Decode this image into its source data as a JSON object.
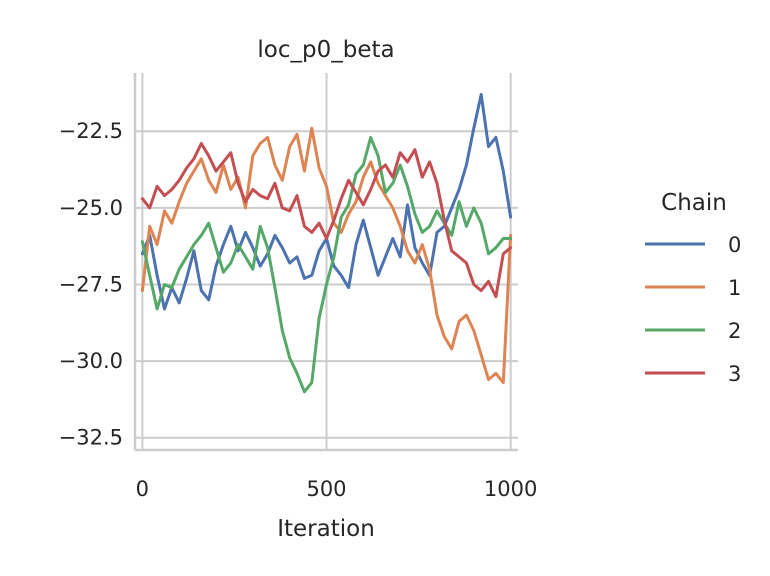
{
  "chart_data": {
    "type": "line",
    "title": "loc_p0_beta",
    "xlabel": "Iteration",
    "ylabel": "",
    "xlim": [
      -20,
      1020
    ],
    "ylim": [
      -32.9,
      -20.6
    ],
    "xticks": [
      0,
      500,
      1000
    ],
    "xtick_labels": [
      "0",
      "500",
      "1000"
    ],
    "yticks": [
      -22.5,
      -25.0,
      -27.5,
      -30.0,
      -32.5
    ],
    "ytick_labels": [
      "−22.5",
      "−25.0",
      "−27.5",
      "−30.0",
      "−32.5"
    ],
    "grid": true,
    "legend": {
      "title": "Chain",
      "placement": "right"
    },
    "series": [
      {
        "name": "0",
        "color": "#4c72b0",
        "x": [
          0,
          20,
          40,
          60,
          80,
          100,
          120,
          140,
          160,
          180,
          200,
          220,
          240,
          260,
          280,
          300,
          320,
          340,
          360,
          380,
          400,
          420,
          440,
          460,
          480,
          500,
          520,
          540,
          560,
          580,
          600,
          620,
          640,
          660,
          680,
          700,
          720,
          740,
          760,
          780,
          800,
          820,
          840,
          860,
          880,
          900,
          920,
          940,
          960,
          980,
          1000
        ],
        "values": [
          -26.5,
          -25.9,
          -27.2,
          -28.3,
          -27.6,
          -28.1,
          -27.3,
          -26.4,
          -27.7,
          -28.0,
          -26.9,
          -26.2,
          -25.6,
          -26.4,
          -25.8,
          -26.3,
          -26.9,
          -26.5,
          -25.9,
          -26.3,
          -26.8,
          -26.6,
          -27.3,
          -27.2,
          -26.4,
          -26.0,
          -26.9,
          -27.2,
          -27.6,
          -26.2,
          -25.4,
          -26.3,
          -27.2,
          -26.6,
          -26.0,
          -26.6,
          -24.9,
          -26.3,
          -26.8,
          -27.2,
          -25.8,
          -25.6,
          -25.0,
          -24.4,
          -23.6,
          -22.4,
          -21.3,
          -23.0,
          -22.7,
          -23.8,
          -25.3
        ]
      },
      {
        "name": "1",
        "color": "#dd8452",
        "x": [
          0,
          20,
          40,
          60,
          80,
          100,
          120,
          140,
          160,
          180,
          200,
          220,
          240,
          260,
          280,
          300,
          320,
          340,
          360,
          380,
          400,
          420,
          440,
          460,
          480,
          500,
          520,
          540,
          560,
          580,
          600,
          620,
          640,
          660,
          680,
          700,
          720,
          740,
          760,
          780,
          800,
          820,
          840,
          860,
          880,
          900,
          920,
          940,
          960,
          980,
          1000
        ],
        "values": [
          -27.7,
          -25.6,
          -26.2,
          -25.1,
          -25.5,
          -24.8,
          -24.2,
          -23.8,
          -23.4,
          -24.1,
          -24.5,
          -23.6,
          -24.4,
          -24.0,
          -25.0,
          -23.3,
          -22.9,
          -22.7,
          -23.6,
          -24.1,
          -23.0,
          -22.6,
          -23.8,
          -22.4,
          -23.7,
          -24.3,
          -25.5,
          -25.8,
          -25.2,
          -24.8,
          -24.0,
          -23.5,
          -24.2,
          -24.6,
          -25.0,
          -25.6,
          -26.4,
          -26.8,
          -26.2,
          -27.0,
          -28.5,
          -29.2,
          -29.6,
          -28.7,
          -28.5,
          -29.0,
          -29.8,
          -30.6,
          -30.4,
          -30.7,
          -25.9
        ]
      },
      {
        "name": "2",
        "color": "#55a868",
        "x": [
          0,
          20,
          40,
          60,
          80,
          100,
          120,
          140,
          160,
          180,
          200,
          220,
          240,
          260,
          280,
          300,
          320,
          340,
          360,
          380,
          400,
          420,
          440,
          460,
          480,
          500,
          520,
          540,
          560,
          580,
          600,
          620,
          640,
          660,
          680,
          700,
          720,
          740,
          760,
          780,
          800,
          820,
          840,
          860,
          880,
          900,
          920,
          940,
          960,
          980,
          1000
        ],
        "values": [
          -26.1,
          -27.2,
          -28.3,
          -27.5,
          -27.6,
          -27.0,
          -26.6,
          -26.2,
          -25.9,
          -25.5,
          -26.3,
          -27.1,
          -26.8,
          -26.2,
          -26.6,
          -27.0,
          -25.6,
          -26.3,
          -27.6,
          -29.0,
          -29.9,
          -30.4,
          -31.0,
          -30.7,
          -28.6,
          -27.5,
          -26.6,
          -25.3,
          -24.9,
          -23.9,
          -23.6,
          -22.7,
          -23.3,
          -24.5,
          -24.2,
          -23.6,
          -24.3,
          -25.2,
          -25.8,
          -25.6,
          -25.1,
          -25.5,
          -25.9,
          -24.8,
          -25.6,
          -25.0,
          -25.5,
          -26.5,
          -26.3,
          -26.0,
          -26.0
        ]
      },
      {
        "name": "3",
        "color": "#c44e52",
        "x": [
          0,
          20,
          40,
          60,
          80,
          100,
          120,
          140,
          160,
          180,
          200,
          220,
          240,
          260,
          280,
          300,
          320,
          340,
          360,
          380,
          400,
          420,
          440,
          460,
          480,
          500,
          520,
          540,
          560,
          580,
          600,
          620,
          640,
          660,
          680,
          700,
          720,
          740,
          760,
          780,
          800,
          820,
          840,
          860,
          880,
          900,
          920,
          940,
          960,
          980,
          1000
        ],
        "values": [
          -24.7,
          -25.0,
          -24.3,
          -24.6,
          -24.4,
          -24.1,
          -23.7,
          -23.4,
          -22.9,
          -23.3,
          -23.8,
          -23.5,
          -23.2,
          -24.2,
          -24.8,
          -24.4,
          -24.6,
          -24.7,
          -24.2,
          -25.0,
          -25.1,
          -24.6,
          -25.6,
          -25.8,
          -25.5,
          -26.0,
          -25.4,
          -24.7,
          -24.1,
          -24.5,
          -24.9,
          -24.4,
          -23.8,
          -23.6,
          -24.0,
          -23.2,
          -23.5,
          -23.1,
          -24.0,
          -23.5,
          -24.2,
          -25.4,
          -26.4,
          -26.6,
          -26.8,
          -27.5,
          -27.7,
          -27.4,
          -27.9,
          -26.5,
          -26.3
        ]
      }
    ]
  }
}
